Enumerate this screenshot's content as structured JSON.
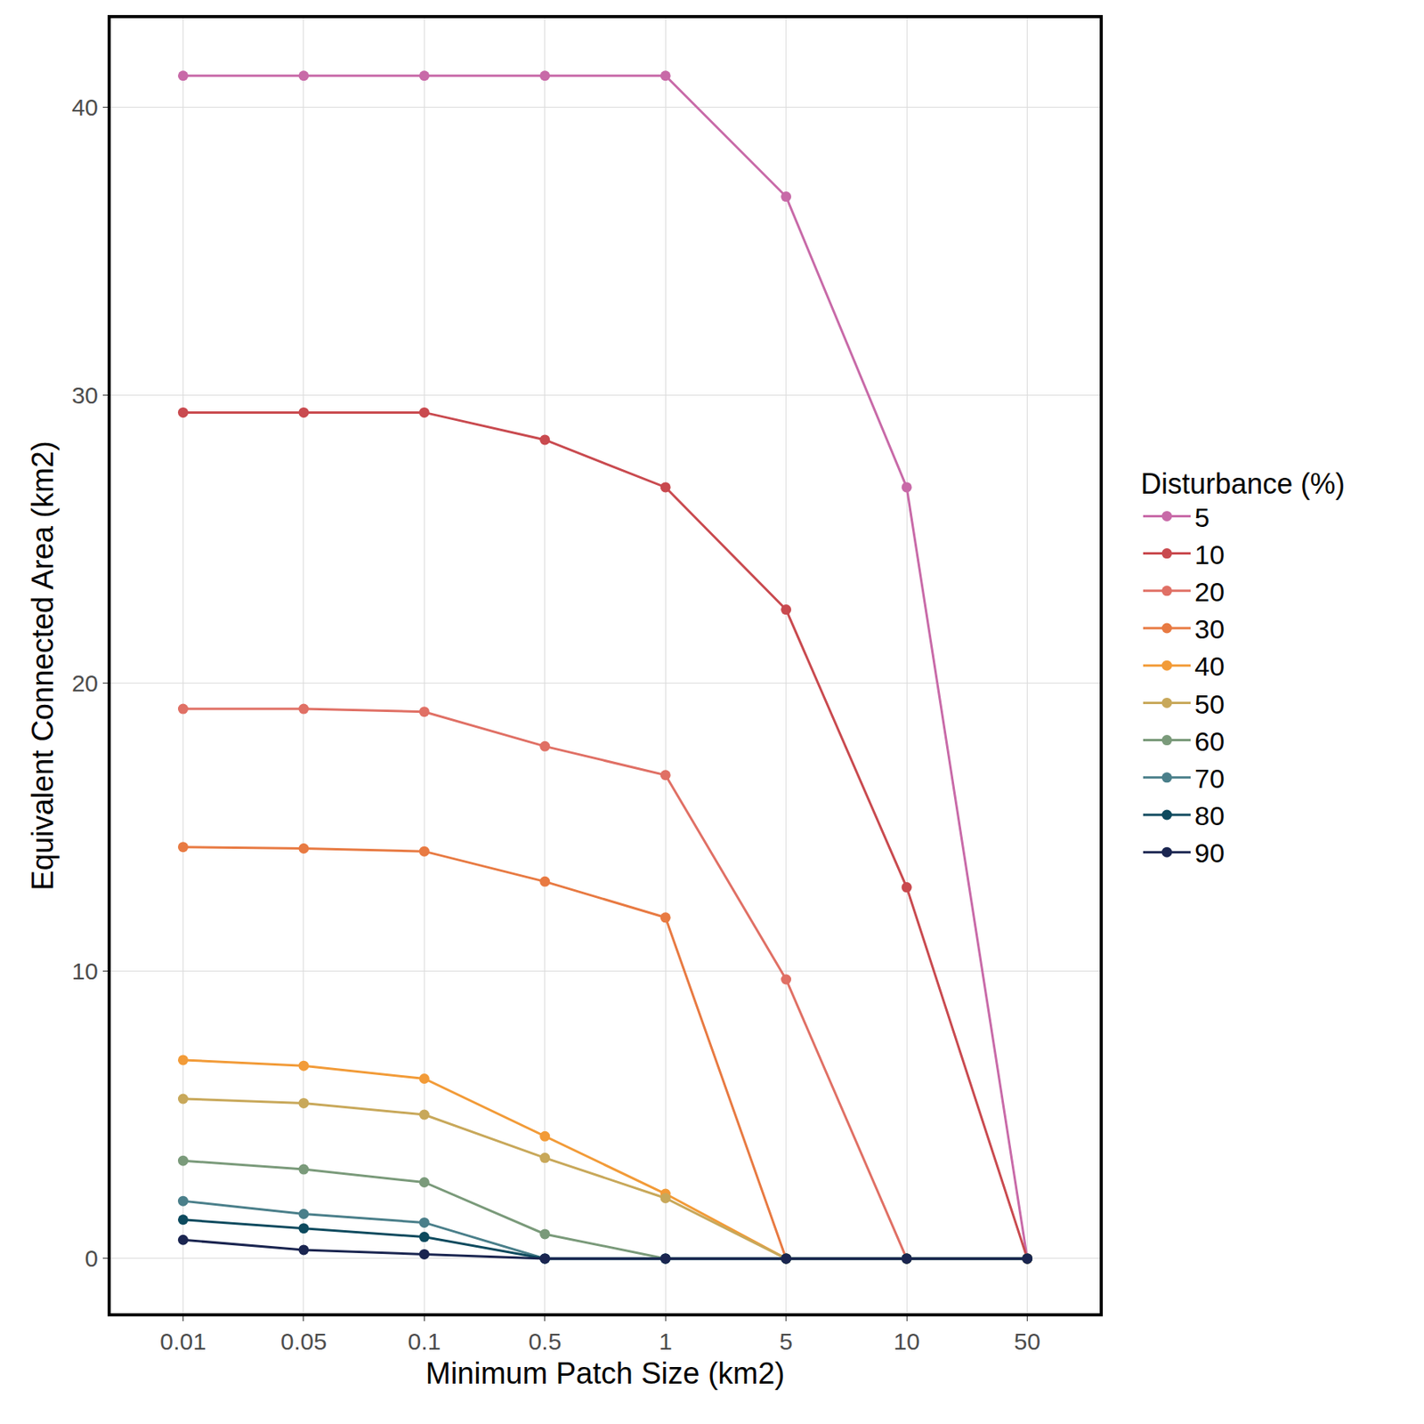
{
  "chart_data": {
    "type": "line",
    "x_label": "Minimum Patch Size (km2)",
    "y_label": "Equivalent Connected Area (km2)",
    "legend_title": "Disturbance (%)",
    "categories": [
      "0.01",
      "0.05",
      "0.1",
      "0.5",
      "1",
      "5",
      "10",
      "50"
    ],
    "series": [
      {
        "name": "5",
        "color": "#c86aa8",
        "values": [
          41.1,
          41.1,
          41.1,
          41.1,
          41.1,
          36.9,
          26.8,
          0
        ]
      },
      {
        "name": "10",
        "color": "#c94a4f",
        "values": [
          29.4,
          29.4,
          29.4,
          28.45,
          26.8,
          22.55,
          12.9,
          0
        ]
      },
      {
        "name": "20",
        "color": "#e07065",
        "values": [
          19.1,
          19.1,
          19.0,
          17.8,
          16.8,
          9.7,
          0,
          0
        ]
      },
      {
        "name": "30",
        "color": "#e87a42",
        "values": [
          14.3,
          14.25,
          14.15,
          13.1,
          11.85,
          0,
          0,
          0
        ]
      },
      {
        "name": "40",
        "color": "#f29b38",
        "values": [
          6.9,
          6.7,
          6.25,
          4.25,
          2.25,
          0,
          0,
          0
        ]
      },
      {
        "name": "50",
        "color": "#c8a85a",
        "values": [
          5.55,
          5.4,
          5.0,
          3.5,
          2.1,
          0,
          0,
          0
        ]
      },
      {
        "name": "60",
        "color": "#7a9a7a",
        "values": [
          3.4,
          3.1,
          2.65,
          0.85,
          0,
          0,
          0,
          0
        ]
      },
      {
        "name": "70",
        "color": "#4a7f8a",
        "values": [
          2.0,
          1.55,
          1.25,
          0,
          0,
          0,
          0,
          0
        ]
      },
      {
        "name": "80",
        "color": "#0d4a5e",
        "values": [
          1.35,
          1.05,
          0.75,
          0,
          0,
          0,
          0,
          0
        ]
      },
      {
        "name": "90",
        "color": "#1a2550",
        "values": [
          0.65,
          0.3,
          0.15,
          0,
          0,
          0,
          0,
          0
        ]
      }
    ],
    "ylim": [
      -1.9,
      43.1
    ],
    "yticks": [
      0,
      10,
      20,
      30,
      40
    ],
    "grid": true,
    "legend": "right",
    "marker": "circle"
  }
}
